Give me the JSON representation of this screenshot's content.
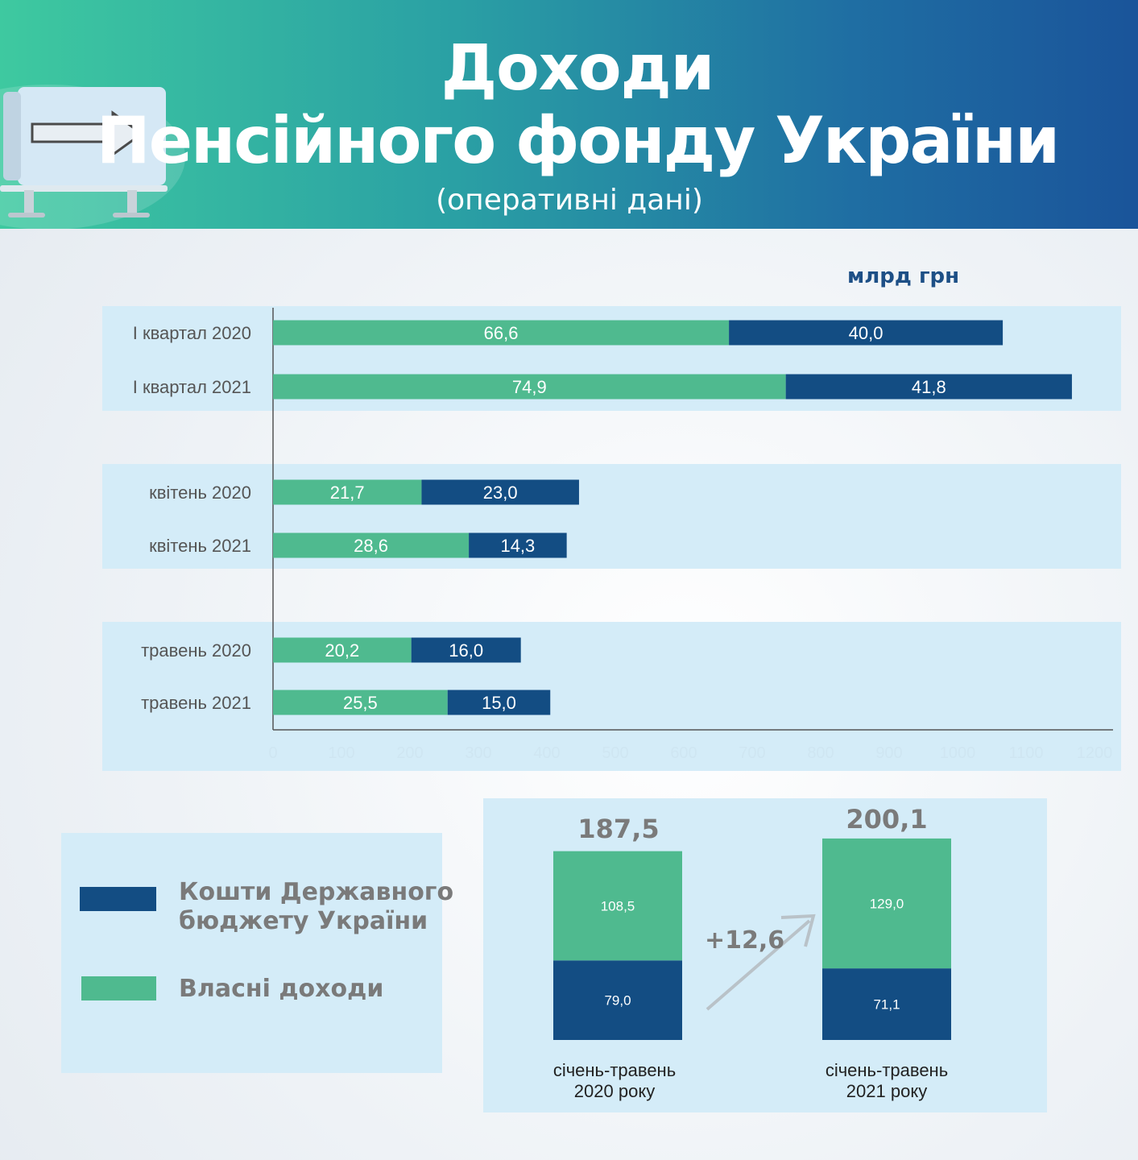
{
  "header": {
    "title_line1": "Доходи",
    "title_line2": "Пенсійного фонду України",
    "subtitle": "(оперативні дані)"
  },
  "unit_label": "млрд грн",
  "colors": {
    "own": "#4fba8f",
    "state": "#134d83",
    "panel": "#d4ecf8"
  },
  "chart_data": [
    {
      "type": "bar",
      "orientation": "horizontal",
      "stacked": true,
      "categories": [
        "І квартал 2020",
        "І квартал 2021",
        "квітень 2020",
        "квітень 2021",
        "травень 2020",
        "травень 2021"
      ],
      "series": [
        {
          "name": "Власні доходи",
          "values": [
            66.6,
            74.9,
            21.7,
            28.6,
            20.2,
            25.5
          ],
          "labels": [
            "66,6",
            "74,9",
            "21,7",
            "28,6",
            "20,2",
            "25,5"
          ]
        },
        {
          "name": "Кошти Державного бюджету України",
          "values": [
            40.0,
            41.8,
            23.0,
            14.3,
            16.0,
            15.0
          ],
          "labels": [
            "40,0",
            "41,8",
            "23,0",
            "14,3",
            "16,0",
            "15,0"
          ]
        }
      ],
      "xlim": [
        0,
        1200
      ],
      "xticks": [
        "0",
        "100",
        "200",
        "300",
        "400",
        "500",
        "600",
        "700",
        "800",
        "900",
        "1000",
        "1100",
        "1200"
      ]
    },
    {
      "type": "bar",
      "stacked": true,
      "categories": [
        "січень-травень 2020 року",
        "січень-травень 2021 року"
      ],
      "category_lines": [
        [
          "січень-травень",
          "2020 року"
        ],
        [
          "січень-травень",
          "2021 року"
        ]
      ],
      "series": [
        {
          "name": "Кошти Державного бюджету України",
          "values": [
            79.0,
            71.1
          ],
          "labels": [
            "79,0",
            "71,1"
          ]
        },
        {
          "name": "Власні доходи",
          "values": [
            108.5,
            129.0
          ],
          "labels": [
            "108,5",
            "129,0"
          ]
        }
      ],
      "totals": [
        "187,5",
        "200,1"
      ],
      "difference": "+12,6"
    }
  ],
  "legend": [
    {
      "label_line1": "Кошти Державного",
      "label_line2": "бюджету України",
      "color": "#134d83"
    },
    {
      "label_line1": "Власні доходи",
      "label_line2": "",
      "color": "#4fba8f"
    }
  ]
}
